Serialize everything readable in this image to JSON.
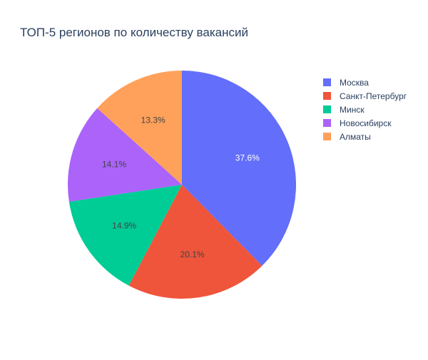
{
  "chart_data": {
    "type": "pie",
    "title": "ТОП-5 регионов по количеству вакансий",
    "categories": [
      "Москва",
      "Санкт-Петербург",
      "Минск",
      "Новосибирск",
      "Алматы"
    ],
    "values": [
      37.6,
      20.1,
      14.9,
      14.1,
      13.3
    ],
    "labels": [
      "37.6%",
      "20.1%",
      "14.9%",
      "14.1%",
      "13.3%"
    ],
    "colors": [
      "#636efa",
      "#ef553b",
      "#00cc96",
      "#ab63fa",
      "#ffa15a"
    ],
    "label_colors": [
      "#ffffff",
      "#444444",
      "#444444",
      "#444444",
      "#444444"
    ],
    "direction": "clockwise",
    "start": "top",
    "legend_position": "top-right"
  }
}
